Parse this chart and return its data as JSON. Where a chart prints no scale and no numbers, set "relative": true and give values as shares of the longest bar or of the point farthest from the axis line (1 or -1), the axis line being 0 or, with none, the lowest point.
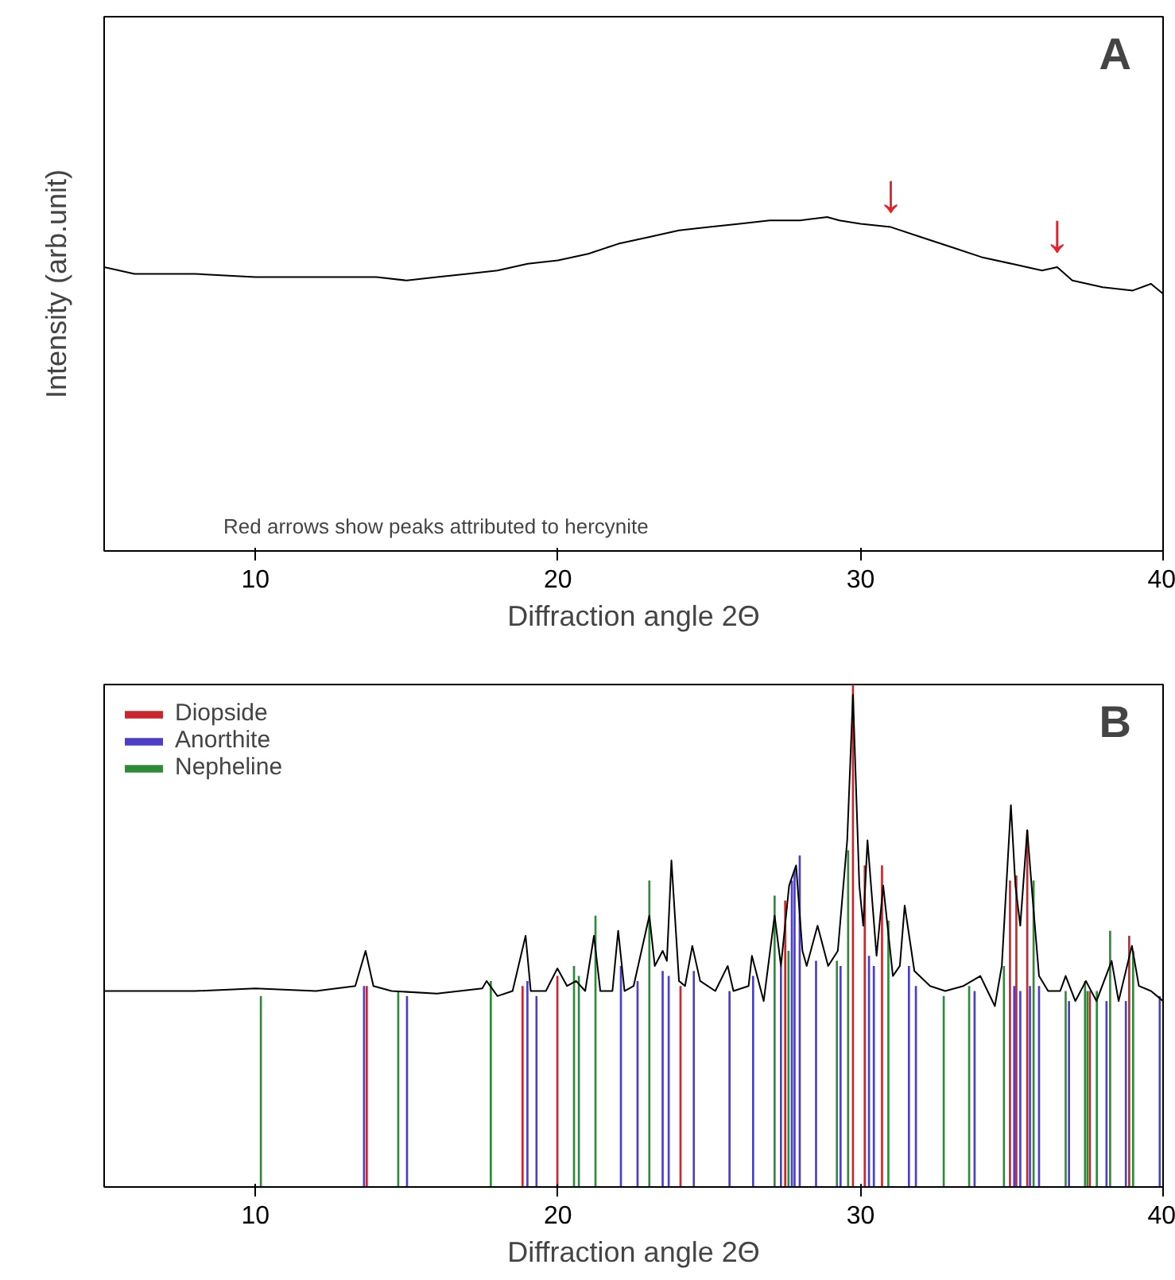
{
  "chart_data": [
    {
      "type": "line",
      "xlabel": "Diffraction angle 2Θ",
      "ylabel": "Intensity (arb.unit)",
      "relative": true,
      "xlim": [
        5,
        40
      ],
      "xticks": [
        10,
        20,
        30,
        40
      ],
      "annotations": [
        "A",
        "Red arrows show peaks attributed to hercynite",
        {
          "text": "↓",
          "x": 31,
          "y": 0.97
        },
        {
          "text": "↓",
          "x": 36.5,
          "y": 0.85
        }
      ],
      "x": [
        5,
        6,
        8,
        10,
        12,
        14,
        15,
        16,
        17,
        18,
        19,
        20,
        21,
        22,
        23,
        24,
        25,
        26,
        27,
        28,
        28.9,
        29.3,
        30,
        31,
        32,
        33,
        34,
        35,
        36,
        36.5,
        37,
        38,
        39,
        39.6,
        40
      ],
      "series": [
        {
          "color": "#000000",
          "values": [
            0.85,
            0.83,
            0.83,
            0.82,
            0.82,
            0.82,
            0.81,
            0.82,
            0.83,
            0.84,
            0.86,
            0.87,
            0.89,
            0.92,
            0.94,
            0.96,
            0.97,
            0.98,
            0.99,
            0.99,
            1.0,
            0.99,
            0.98,
            0.97,
            0.94,
            0.91,
            0.88,
            0.86,
            0.84,
            0.85,
            0.81,
            0.79,
            0.78,
            0.8,
            0.77
          ]
        }
      ]
    },
    {
      "type": "line",
      "xlabel": "Diffraction angle 2Θ",
      "relative": true,
      "xlim": [
        5,
        40
      ],
      "xticks": [
        10,
        20,
        30,
        40
      ],
      "legend": "top left",
      "annotations": [
        "B"
      ],
      "series": [
        {
          "color": "#000000",
          "x": [
            5,
            8,
            10,
            12,
            13.3,
            13.64,
            13.9,
            14.5,
            16,
            17.5,
            17.64,
            18,
            18.5,
            18.93,
            19.1,
            19.6,
            19.98,
            20.3,
            20.6,
            20.9,
            21.19,
            21.4,
            21.8,
            21.99,
            22.2,
            22.5,
            23.02,
            23.2,
            23.46,
            23.6,
            23.75,
            24.0,
            24.2,
            24.44,
            24.7,
            25.2,
            25.61,
            25.8,
            26.3,
            26.41,
            26.8,
            27.16,
            27.37,
            27.64,
            27.87,
            28.08,
            28.22,
            28.58,
            28.93,
            29.25,
            29.56,
            29.75,
            29.96,
            30.09,
            30.23,
            30.53,
            30.75,
            31.07,
            31.3,
            31.46,
            31.78,
            32.3,
            32.8,
            33.4,
            33.96,
            34.2,
            34.44,
            34.67,
            34.97,
            35.12,
            35.28,
            35.51,
            35.68,
            35.9,
            36.2,
            36.6,
            36.78,
            37.1,
            37.45,
            37.8,
            38.3,
            38.53,
            38.97,
            39.2,
            39.6,
            40
          ],
          "values": [
            0.39,
            0.39,
            0.395,
            0.39,
            0.4,
            0.47,
            0.4,
            0.39,
            0.385,
            0.395,
            0.41,
            0.38,
            0.39,
            0.5,
            0.39,
            0.39,
            0.435,
            0.4,
            0.41,
            0.39,
            0.5,
            0.39,
            0.39,
            0.51,
            0.39,
            0.4,
            0.54,
            0.44,
            0.47,
            0.45,
            0.65,
            0.41,
            0.4,
            0.48,
            0.41,
            0.39,
            0.44,
            0.39,
            0.4,
            0.46,
            0.37,
            0.54,
            0.44,
            0.6,
            0.64,
            0.47,
            0.44,
            0.52,
            0.44,
            0.47,
            0.69,
            0.98,
            0.6,
            0.52,
            0.69,
            0.46,
            0.6,
            0.42,
            0.44,
            0.56,
            0.43,
            0.4,
            0.39,
            0.4,
            0.42,
            0.39,
            0.36,
            0.44,
            0.76,
            0.6,
            0.52,
            0.71,
            0.58,
            0.42,
            0.39,
            0.39,
            0.42,
            0.37,
            0.41,
            0.37,
            0.45,
            0.37,
            0.48,
            0.4,
            0.39,
            0.37
          ]
        },
        {
          "type": "bar",
          "name": "Diopside",
          "color": "#c8282d",
          "x": [
            13.68,
            18.83,
            19.98,
            24.05,
            27.51,
            29.75,
            30.14,
            30.71,
            34.94,
            35.15,
            35.51,
            37.58,
            38.88
          ],
          "values": [
            0.4,
            0.4,
            0.42,
            0.4,
            0.57,
            1.0,
            0.64,
            0.64,
            0.61,
            0.62,
            0.71,
            0.39,
            0.5
          ]
        },
        {
          "type": "bar",
          "name": "Anorthite",
          "color": "#4b3fc8",
          "x": [
            13.59,
            15.01,
            18.99,
            19.29,
            22.08,
            22.63,
            23.46,
            23.66,
            24.49,
            25.67,
            26.45,
            27.37,
            27.73,
            27.82,
            27.99,
            28.53,
            29.34,
            30.28,
            30.44,
            31.6,
            31.83,
            33.77,
            35.08,
            35.28,
            35.6,
            35.9,
            36.89,
            38.13,
            38.77,
            39.89
          ],
          "values": [
            0.4,
            0.38,
            0.41,
            0.38,
            0.44,
            0.41,
            0.43,
            0.42,
            0.43,
            0.39,
            0.42,
            0.44,
            0.61,
            0.63,
            0.66,
            0.45,
            0.44,
            0.46,
            0.44,
            0.44,
            0.4,
            0.39,
            0.4,
            0.39,
            0.4,
            0.4,
            0.37,
            0.37,
            0.37,
            0.38
          ]
        },
        {
          "type": "bar",
          "name": "Nepheline",
          "color": "#2e8b3a",
          "x": [
            10.18,
            14.72,
            17.78,
            20.53,
            20.69,
            21.24,
            23.02,
            27.16,
            27.62,
            29.22,
            29.59,
            30.92,
            32.75,
            33.59,
            34.74,
            35.72,
            36.78,
            37.42,
            37.5,
            37.81,
            38.25,
            39.01
          ],
          "values": [
            0.38,
            0.39,
            0.41,
            0.44,
            0.42,
            0.54,
            0.61,
            0.58,
            0.47,
            0.45,
            0.67,
            0.53,
            0.38,
            0.4,
            0.44,
            0.61,
            0.39,
            0.41,
            0.39,
            0.39,
            0.51,
            0.47
          ]
        }
      ]
    }
  ]
}
